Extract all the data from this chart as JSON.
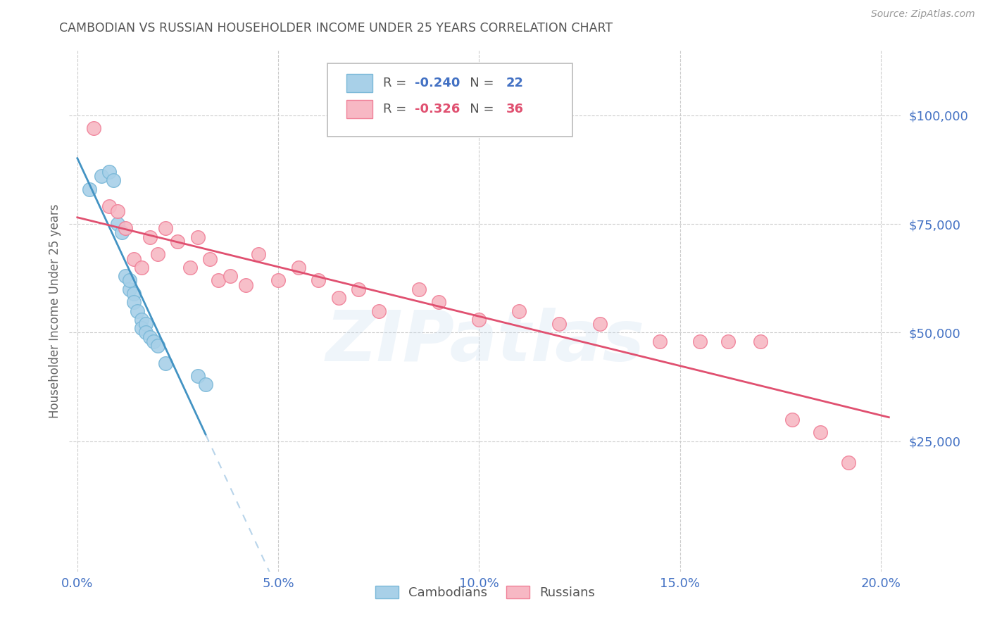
{
  "title": "CAMBODIAN VS RUSSIAN HOUSEHOLDER INCOME UNDER 25 YEARS CORRELATION CHART",
  "source": "Source: ZipAtlas.com",
  "ylabel": "Householder Income Under 25 years",
  "xlabel_ticks": [
    "0.0%",
    "5.0%",
    "10.0%",
    "15.0%",
    "20.0%"
  ],
  "xlabel_vals": [
    0.0,
    0.05,
    0.1,
    0.15,
    0.2
  ],
  "ylabel_ticks": [
    "$25,000",
    "$50,000",
    "$75,000",
    "$100,000"
  ],
  "ylabel_vals": [
    25000,
    50000,
    75000,
    100000
  ],
  "xlim": [
    -0.002,
    0.205
  ],
  "ylim": [
    -5000,
    115000
  ],
  "watermark": "ZIPatlas",
  "cambodian_R": -0.24,
  "cambodian_N": 22,
  "russian_R": -0.326,
  "russian_N": 36,
  "cambodian_color": "#a8d0e8",
  "cambodian_edge": "#7ab8d8",
  "russian_color": "#f7b8c4",
  "russian_edge": "#f08098",
  "cambodian_x": [
    0.003,
    0.006,
    0.008,
    0.009,
    0.01,
    0.011,
    0.012,
    0.013,
    0.013,
    0.014,
    0.014,
    0.015,
    0.016,
    0.016,
    0.017,
    0.017,
    0.018,
    0.019,
    0.02,
    0.022,
    0.03,
    0.032
  ],
  "cambodian_y": [
    83000,
    86000,
    87000,
    85000,
    75000,
    73000,
    63000,
    60000,
    62000,
    59000,
    57000,
    55000,
    53000,
    51000,
    52000,
    50000,
    49000,
    48000,
    47000,
    43000,
    40000,
    38000
  ],
  "russian_x": [
    0.004,
    0.008,
    0.01,
    0.012,
    0.014,
    0.016,
    0.018,
    0.02,
    0.022,
    0.025,
    0.028,
    0.03,
    0.033,
    0.035,
    0.038,
    0.042,
    0.045,
    0.05,
    0.055,
    0.06,
    0.065,
    0.07,
    0.075,
    0.085,
    0.09,
    0.1,
    0.11,
    0.12,
    0.13,
    0.145,
    0.155,
    0.162,
    0.17,
    0.178,
    0.185,
    0.192
  ],
  "russian_y": [
    97000,
    79000,
    78000,
    74000,
    67000,
    65000,
    72000,
    68000,
    74000,
    71000,
    65000,
    72000,
    67000,
    62000,
    63000,
    61000,
    68000,
    62000,
    65000,
    62000,
    58000,
    60000,
    55000,
    60000,
    57000,
    53000,
    55000,
    52000,
    52000,
    48000,
    48000,
    48000,
    48000,
    30000,
    27000,
    20000
  ],
  "trendline_blue_color": "#4393c3",
  "trendline_pink_color": "#e05070",
  "trendline_blue_dashed_color": "#b8d4ea",
  "grid_color": "#cccccc",
  "background_color": "#ffffff",
  "title_color": "#555555",
  "axis_label_color": "#666666",
  "tick_color": "#4472C4",
  "source_color": "#999999",
  "cam_trend_x_solid_end": 0.032,
  "cam_trend_x_dash_end": 0.205
}
